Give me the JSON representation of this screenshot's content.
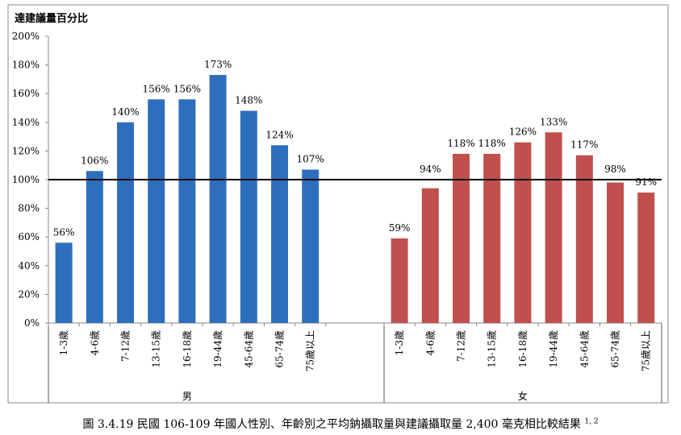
{
  "chart_data": {
    "type": "bar",
    "ylabel": "達建議量百分比",
    "ylim": [
      0,
      200
    ],
    "yticks": [
      0,
      20,
      40,
      60,
      80,
      100,
      120,
      140,
      160,
      180,
      200
    ],
    "tick_suffix": "%",
    "reference_line": 100,
    "grid": false,
    "groups": [
      {
        "name": "男",
        "color": "#2e6fbd",
        "categories": [
          "1-3歲",
          "4-6歲",
          "7-12歲",
          "13-15歲",
          "16-18歲",
          "19-44歲",
          "45-64歲",
          "65-74歲",
          "75歲以上"
        ],
        "values": [
          56,
          106,
          140,
          156,
          156,
          173,
          148,
          124,
          107
        ]
      },
      {
        "name": "女",
        "color": "#c0504d",
        "categories": [
          "1-3歲",
          "4-6歲",
          "7-12歲",
          "13-15歲",
          "16-18歲",
          "19-44歲",
          "45-64歲",
          "65-74歲",
          "75歲以上"
        ],
        "values": [
          59,
          94,
          118,
          118,
          126,
          133,
          117,
          98,
          91
        ]
      }
    ]
  },
  "caption": {
    "text": "圖 3.4.19 民國 106-109 年國人性別、年齡別之平均鈉攝取量與建議攝取量 2,400 毫克相比較結果",
    "superscript": "1, 2"
  }
}
